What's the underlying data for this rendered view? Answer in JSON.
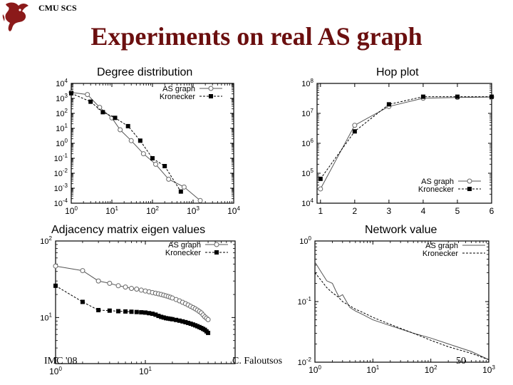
{
  "header": {
    "school": "CMU SCS",
    "title": "Experiments on real AS graph"
  },
  "footer": {
    "left": "IMC '08",
    "center": "C. Faloutsos",
    "page": "50"
  },
  "colors": {
    "title": "#6b0f0f",
    "logo": "#8b1a1a",
    "series": "#000000"
  },
  "chart_data": [
    {
      "type": "line",
      "title": "Degree distribution",
      "xscale": "log",
      "yscale": "log",
      "xlim": [
        1,
        10000
      ],
      "ylim": [
        0.0001,
        10000
      ],
      "xticks": [
        {
          "v": 1,
          "b": "10",
          "e": "0"
        },
        {
          "v": 10,
          "b": "10",
          "e": "1"
        },
        {
          "v": 100,
          "b": "10",
          "e": "2"
        },
        {
          "v": 1000,
          "b": "10",
          "e": "3"
        },
        {
          "v": 10000,
          "b": "10",
          "e": "4"
        }
      ],
      "yticks": [
        {
          "v": 10000,
          "b": "10",
          "e": "4"
        },
        {
          "v": 1000,
          "b": "10",
          "e": "3"
        },
        {
          "v": 100,
          "b": "10",
          "e": "2"
        },
        {
          "v": 10,
          "b": "10",
          "e": "1"
        },
        {
          "v": 1,
          "b": "10",
          "e": "0"
        },
        {
          "v": 0.1,
          "b": "10",
          "e": "-1"
        },
        {
          "v": 0.01,
          "b": "10",
          "e": "-2"
        },
        {
          "v": 0.001,
          "b": "10",
          "e": "-3"
        },
        {
          "v": 0.0001,
          "b": "10",
          "e": "-4"
        }
      ],
      "legend_position": "top-right",
      "series": [
        {
          "name": "AS graph",
          "marker": "circle",
          "dash": false,
          "x": [
            1,
            2.5,
            5,
            10,
            16,
            30,
            60,
            120,
            250,
            600,
            1500
          ],
          "y": [
            2500,
            1800,
            250,
            50,
            8,
            1.5,
            0.2,
            0.04,
            0.004,
            0.0012,
            0.00015
          ]
        },
        {
          "name": "Kronecker",
          "marker": "square",
          "dash": true,
          "x": [
            1,
            3,
            6,
            12,
            25,
            50,
            100,
            200,
            500
          ],
          "y": [
            2200,
            600,
            120,
            50,
            14,
            1.5,
            0.1,
            0.03,
            0.0006
          ]
        }
      ]
    },
    {
      "type": "line",
      "title": "Hop plot",
      "xscale": "linear",
      "yscale": "log",
      "xlim": [
        0.9,
        6
      ],
      "ylim": [
        10000,
        100000000
      ],
      "xticks": [
        {
          "v": 1,
          "t": "1"
        },
        {
          "v": 2,
          "t": "2"
        },
        {
          "v": 3,
          "t": "3"
        },
        {
          "v": 4,
          "t": "4"
        },
        {
          "v": 5,
          "t": "5"
        },
        {
          "v": 6,
          "t": "6"
        }
      ],
      "yticks": [
        {
          "v": 100000000,
          "b": "10",
          "e": "8"
        },
        {
          "v": 10000000,
          "b": "10",
          "e": "7"
        },
        {
          "v": 1000000,
          "b": "10",
          "e": "6"
        },
        {
          "v": 100000,
          "b": "10",
          "e": "5"
        },
        {
          "v": 10000,
          "b": "10",
          "e": "4"
        }
      ],
      "legend_position": "bottom-right",
      "series": [
        {
          "name": "AS graph",
          "marker": "circle",
          "dash": false,
          "x": [
            1,
            2,
            3,
            4,
            5,
            6
          ],
          "y": [
            30000,
            4000000,
            17000000,
            32000000,
            34000000,
            35000000
          ]
        },
        {
          "name": "Kronecker",
          "marker": "square",
          "dash": true,
          "x": [
            1,
            2,
            3,
            4,
            5,
            6
          ],
          "y": [
            65000,
            2500000,
            20000000,
            36000000,
            36000000,
            36000000
          ]
        }
      ]
    },
    {
      "type": "line",
      "title": "Adjacency matrix eigen values",
      "xscale": "log",
      "yscale": "log",
      "xlim": [
        1,
        100
      ],
      "ylim": [
        2.5,
        100
      ],
      "xticks": [
        {
          "v": 1,
          "b": "10",
          "e": "0"
        },
        {
          "v": 10,
          "b": "10",
          "e": "1"
        }
      ],
      "yticks": [
        {
          "v": 100,
          "b": "10",
          "e": "2"
        },
        {
          "v": 10,
          "b": "10",
          "e": "1"
        }
      ],
      "legend_position": "top-right",
      "series": [
        {
          "name": "AS graph",
          "marker": "circle",
          "dash": false,
          "x": [
            1,
            2,
            3,
            4,
            5,
            6,
            7,
            8,
            9,
            10,
            11,
            12,
            13,
            14,
            15,
            16,
            17,
            18,
            19,
            20,
            22,
            24,
            26,
            28,
            30,
            32,
            34,
            36,
            38,
            40,
            42,
            44,
            46,
            48,
            50
          ],
          "y": [
            47,
            41,
            30,
            28,
            26,
            25,
            24,
            23.5,
            22.8,
            22.2,
            21.7,
            21.2,
            20.8,
            20.4,
            20,
            19.6,
            19.2,
            18.8,
            18.4,
            18,
            17.2,
            16.5,
            15.8,
            15.2,
            14.6,
            14,
            13.5,
            13,
            12.5,
            12,
            11.5,
            10.8,
            10.2,
            9.8,
            9.4
          ]
        },
        {
          "name": "Kronecker",
          "marker": "square",
          "dash": true,
          "x": [
            1,
            2,
            3,
            4,
            5,
            6,
            7,
            8,
            9,
            10,
            11,
            12,
            13,
            14,
            15,
            16,
            17,
            18,
            19,
            20,
            22,
            24,
            26,
            28,
            30,
            32,
            34,
            36,
            38,
            40,
            42,
            44,
            46,
            48,
            50
          ],
          "y": [
            26,
            16,
            12.5,
            12.3,
            12.1,
            12,
            11.9,
            11.8,
            11.7,
            11.6,
            11.4,
            11.2,
            10.9,
            10.5,
            10.2,
            10,
            9.8,
            9.7,
            9.6,
            9.5,
            9.3,
            9.1,
            8.9,
            8.7,
            8.5,
            8.3,
            8.1,
            7.9,
            7.7,
            7.5,
            7.3,
            7.1,
            6.9,
            6.6,
            6.3
          ]
        }
      ]
    },
    {
      "type": "line",
      "title": "Network value",
      "xscale": "log",
      "yscale": "log",
      "xlim": [
        1,
        1000
      ],
      "ylim": [
        0.01,
        1
      ],
      "xticks": [
        {
          "v": 1,
          "b": "10",
          "e": "0"
        },
        {
          "v": 10,
          "b": "10",
          "e": "1"
        },
        {
          "v": 100,
          "b": "10",
          "e": "2"
        },
        {
          "v": 1000,
          "b": "10",
          "e": "3"
        }
      ],
      "yticks": [
        {
          "v": 1,
          "b": "10",
          "e": "0"
        },
        {
          "v": 0.1,
          "b": "10",
          "e": "-1"
        },
        {
          "v": 0.01,
          "b": "10",
          "e": "-2"
        }
      ],
      "legend_position": "top-right",
      "series": [
        {
          "name": "AS graph",
          "marker": "none",
          "dash": false,
          "x": [
            1,
            1.3,
            1.6,
            2,
            2.3,
            2.6,
            3,
            3.5,
            4,
            5,
            7,
            10,
            20,
            50,
            100,
            200,
            500,
            1000
          ],
          "y": [
            0.45,
            0.3,
            0.22,
            0.2,
            0.15,
            0.12,
            0.13,
            0.1,
            0.08,
            0.07,
            0.06,
            0.05,
            0.04,
            0.03,
            0.025,
            0.02,
            0.015,
            0.011
          ]
        },
        {
          "name": "Kronecker",
          "marker": "none",
          "dash": true,
          "x": [
            1,
            1.3,
            1.6,
            2,
            2.5,
            3,
            4,
            5,
            7,
            10,
            20,
            50,
            100,
            200,
            500,
            1000
          ],
          "y": [
            0.3,
            0.22,
            0.17,
            0.14,
            0.12,
            0.1,
            0.085,
            0.075,
            0.065,
            0.055,
            0.042,
            0.03,
            0.023,
            0.018,
            0.014,
            0.011
          ]
        }
      ]
    }
  ]
}
